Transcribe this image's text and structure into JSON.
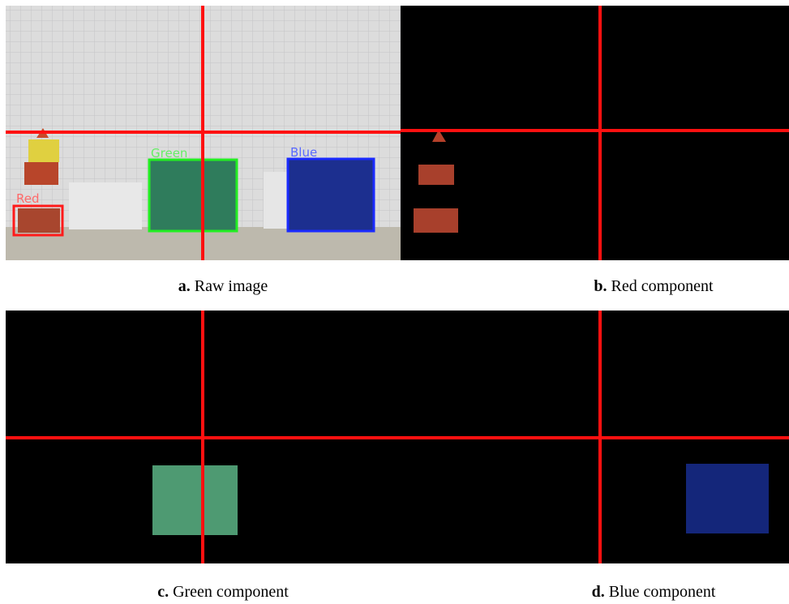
{
  "panels": [
    {
      "letter": "a.",
      "caption": "Raw image"
    },
    {
      "letter": "b.",
      "caption": "Red component"
    },
    {
      "letter": "c.",
      "caption": "Green component"
    },
    {
      "letter": "d.",
      "caption": "Blue component"
    }
  ],
  "box_labels": [
    "Red",
    "Green",
    "Blue"
  ]
}
